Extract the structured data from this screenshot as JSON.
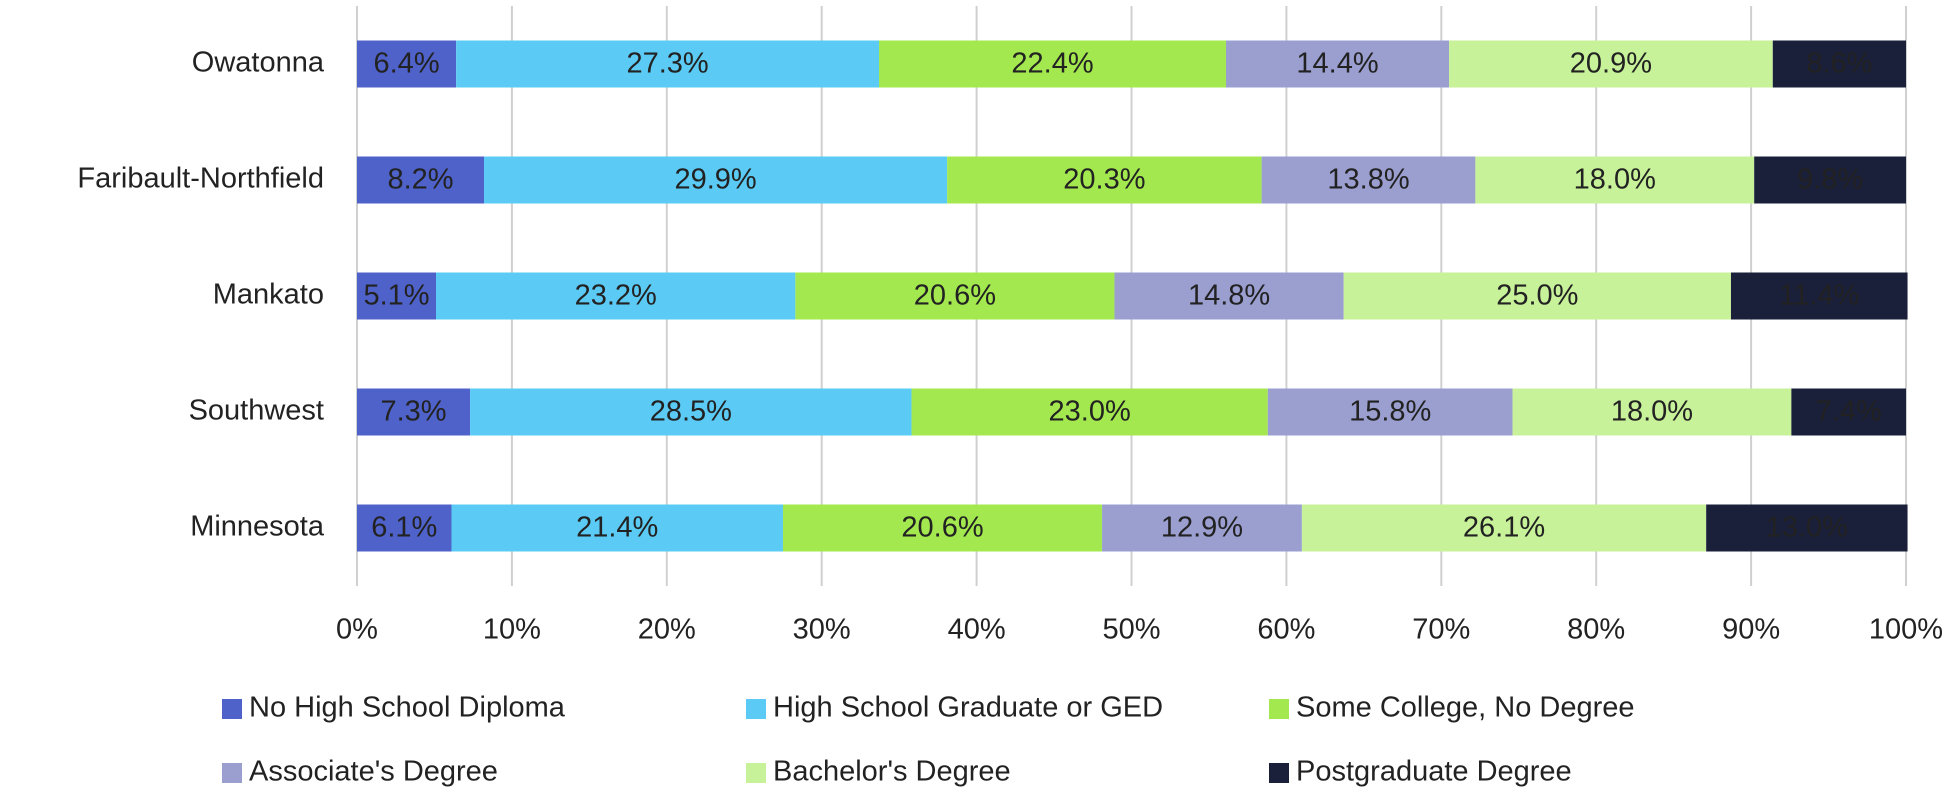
{
  "chart_data": {
    "type": "stacked-bar-horizontal",
    "categories": [
      "Owatonna",
      "Faribault-Northfield",
      "Mankato",
      "Southwest",
      "Minnesota"
    ],
    "series": [
      {
        "name": "No High School Diploma",
        "color": "#4f62c9",
        "values": [
          6.4,
          8.2,
          5.1,
          7.3,
          6.1
        ],
        "value_labels": [
          "6.4%",
          "8.2%",
          "5.1%",
          "7.3%",
          "6.1%"
        ]
      },
      {
        "name": "High School Graduate or GED",
        "color": "#5bcbf5",
        "values": [
          27.3,
          29.9,
          23.2,
          28.5,
          21.4
        ],
        "value_labels": [
          "27.3%",
          "29.9%",
          "23.2%",
          "28.5%",
          "21.4%"
        ]
      },
      {
        "name": "Some College, No Degree",
        "color": "#a3e84f",
        "values": [
          22.4,
          20.3,
          20.6,
          23.0,
          20.6
        ],
        "value_labels": [
          "22.4%",
          "20.3%",
          "20.6%",
          "23.0%",
          "20.6%"
        ]
      },
      {
        "name": "Associate's Degree",
        "color": "#9a9fd0",
        "values": [
          14.4,
          13.8,
          14.8,
          15.8,
          12.9
        ],
        "value_labels": [
          "14.4%",
          "13.8%",
          "14.8%",
          "15.8%",
          "12.9%"
        ]
      },
      {
        "name": "Bachelor's Degree",
        "color": "#c8f29a",
        "values": [
          20.9,
          18.0,
          25.0,
          18.0,
          26.1
        ],
        "value_labels": [
          "20.9%",
          "18.0%",
          "25.0%",
          "18.0%",
          "26.1%"
        ]
      },
      {
        "name": "Postgraduate Degree",
        "color": "#1a1f3a",
        "values": [
          8.6,
          9.8,
          11.4,
          7.4,
          13.0
        ],
        "value_labels": [
          "8.6%",
          "9.8%",
          "11.4%",
          "7.4%",
          "13.0%"
        ]
      }
    ],
    "xlim": [
      0,
      100
    ],
    "xticks": [
      {
        "value": 0,
        "label": "0%"
      },
      {
        "value": 10,
        "label": "10%"
      },
      {
        "value": 20,
        "label": "20%"
      },
      {
        "value": 30,
        "label": "30%"
      },
      {
        "value": 40,
        "label": "40%"
      },
      {
        "value": 50,
        "label": "50%"
      },
      {
        "value": 60,
        "label": "60%"
      },
      {
        "value": 70,
        "label": "70%"
      },
      {
        "value": 80,
        "label": "80%"
      },
      {
        "value": 90,
        "label": "90%"
      },
      {
        "value": 100,
        "label": "100%"
      }
    ],
    "grid": true,
    "legend": "bottom"
  }
}
